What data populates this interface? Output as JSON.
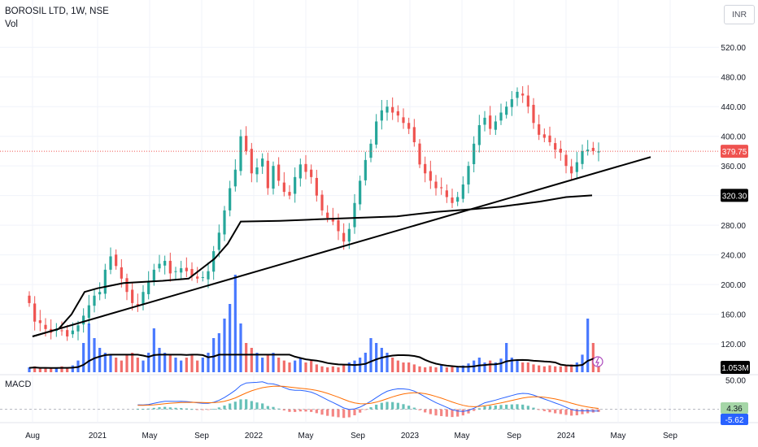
{
  "header": {
    "title": "BOROSIL LTD, 1W, NSE",
    "volume_label": "Vol",
    "macd_label": "MACD",
    "currency": "INR"
  },
  "colors": {
    "up": "#26a69a",
    "down": "#ef5350",
    "vol_up": "#2962ff",
    "vol_down": "#ef5350",
    "trend": "#000000",
    "macd": "#2962ff",
    "signal": "#ff6d00",
    "hist_up": "#26a69a",
    "hist_down": "#ef5350"
  },
  "chart_data": {
    "type": "candlestick",
    "title": "BOROSIL LTD, 1W, NSE",
    "price_axis": {
      "ticks": [
        120,
        160,
        200,
        240,
        280,
        320,
        360,
        400,
        440,
        480,
        520
      ],
      "range": [
        85,
        540
      ]
    },
    "price_label": "379.75",
    "ma_label": "320.30",
    "volume_label": "1.053M",
    "x_axis": {
      "labels": [
        "Aug",
        "2021",
        "May",
        "Sep",
        "2022",
        "May",
        "Sep",
        "2023",
        "May",
        "Sep",
        "2024",
        "May",
        "Sep"
      ]
    },
    "trendline": {
      "from": [
        "2020-08",
        130
      ],
      "to": [
        "2024-08",
        372
      ]
    },
    "moving_average": [
      [
        "2020-08",
        130
      ],
      [
        "2020-10",
        140
      ],
      [
        "2020-11",
        160
      ],
      [
        "2020-12",
        190
      ],
      [
        "2021-01",
        195
      ],
      [
        "2021-03",
        202
      ],
      [
        "2021-06",
        205
      ],
      [
        "2021-08",
        208
      ],
      [
        "2021-10",
        235
      ],
      [
        "2021-11",
        255
      ],
      [
        "2021-12",
        285
      ],
      [
        "2022-03",
        286
      ],
      [
        "2022-06",
        288
      ],
      [
        "2022-09",
        290
      ],
      [
        "2022-12",
        292
      ],
      [
        "2023-03",
        298
      ],
      [
        "2023-06",
        302
      ],
      [
        "2023-08",
        305
      ],
      [
        "2023-11",
        312
      ],
      [
        "2024-01",
        318
      ],
      [
        "2024-03",
        320.3
      ]
    ],
    "candles_close": [
      175,
      150,
      148,
      140,
      135,
      140,
      138,
      130,
      138,
      145,
      158,
      172,
      185,
      190,
      220,
      238,
      225,
      208,
      190,
      175,
      172,
      190,
      205,
      220,
      228,
      232,
      215,
      218,
      222,
      218,
      212,
      208,
      210,
      218,
      245,
      270,
      300,
      330,
      355,
      400,
      380,
      350,
      358,
      370,
      330,
      360,
      340,
      325,
      320,
      345,
      362,
      352,
      345,
      320,
      300,
      290,
      285,
      272,
      258,
      275,
      310,
      340,
      368,
      390,
      420,
      435,
      440,
      432,
      428,
      418,
      410,
      392,
      362,
      350,
      340,
      330,
      330,
      318,
      310,
      318,
      335,
      360,
      390,
      415,
      425,
      410,
      420,
      432,
      440,
      450,
      460,
      455,
      440,
      418,
      402,
      398,
      392,
      382,
      378,
      360,
      350,
      365,
      380,
      382,
      380,
      379.75
    ],
    "volume_relative": [
      0.05,
      0.06,
      0.04,
      0.05,
      0.04,
      0.05,
      0.06,
      0.05,
      0.07,
      0.12,
      0.3,
      0.5,
      0.35,
      0.25,
      0.2,
      0.18,
      0.15,
      0.12,
      0.18,
      0.2,
      0.15,
      0.12,
      0.2,
      0.45,
      0.25,
      0.2,
      0.18,
      0.15,
      0.12,
      0.15,
      0.18,
      0.12,
      0.15,
      0.2,
      0.35,
      0.4,
      0.55,
      0.7,
      1.0,
      0.5,
      0.3,
      0.25,
      0.2,
      0.15,
      0.18,
      0.2,
      0.15,
      0.12,
      0.1,
      0.12,
      0.15,
      0.1,
      0.12,
      0.08,
      0.06,
      0.05,
      0.06,
      0.05,
      0.08,
      0.1,
      0.12,
      0.15,
      0.2,
      0.35,
      0.3,
      0.25,
      0.2,
      0.15,
      0.12,
      0.1,
      0.1,
      0.08,
      0.06,
      0.05,
      0.06,
      0.05,
      0.08,
      0.05,
      0.06,
      0.05,
      0.07,
      0.09,
      0.12,
      0.15,
      0.1,
      0.12,
      0.1,
      0.14,
      0.3,
      0.15,
      0.12,
      0.1,
      0.1,
      0.08,
      0.07,
      0.06,
      0.07,
      0.06,
      0.06,
      0.07,
      0.08,
      0.1,
      0.18,
      0.55,
      0.3,
      0.12
    ],
    "macd_axis": {
      "ticks": [
        50
      ],
      "range": [
        -20,
        55
      ]
    },
    "macd_value": "4.36",
    "signal_value": "-5.62"
  }
}
